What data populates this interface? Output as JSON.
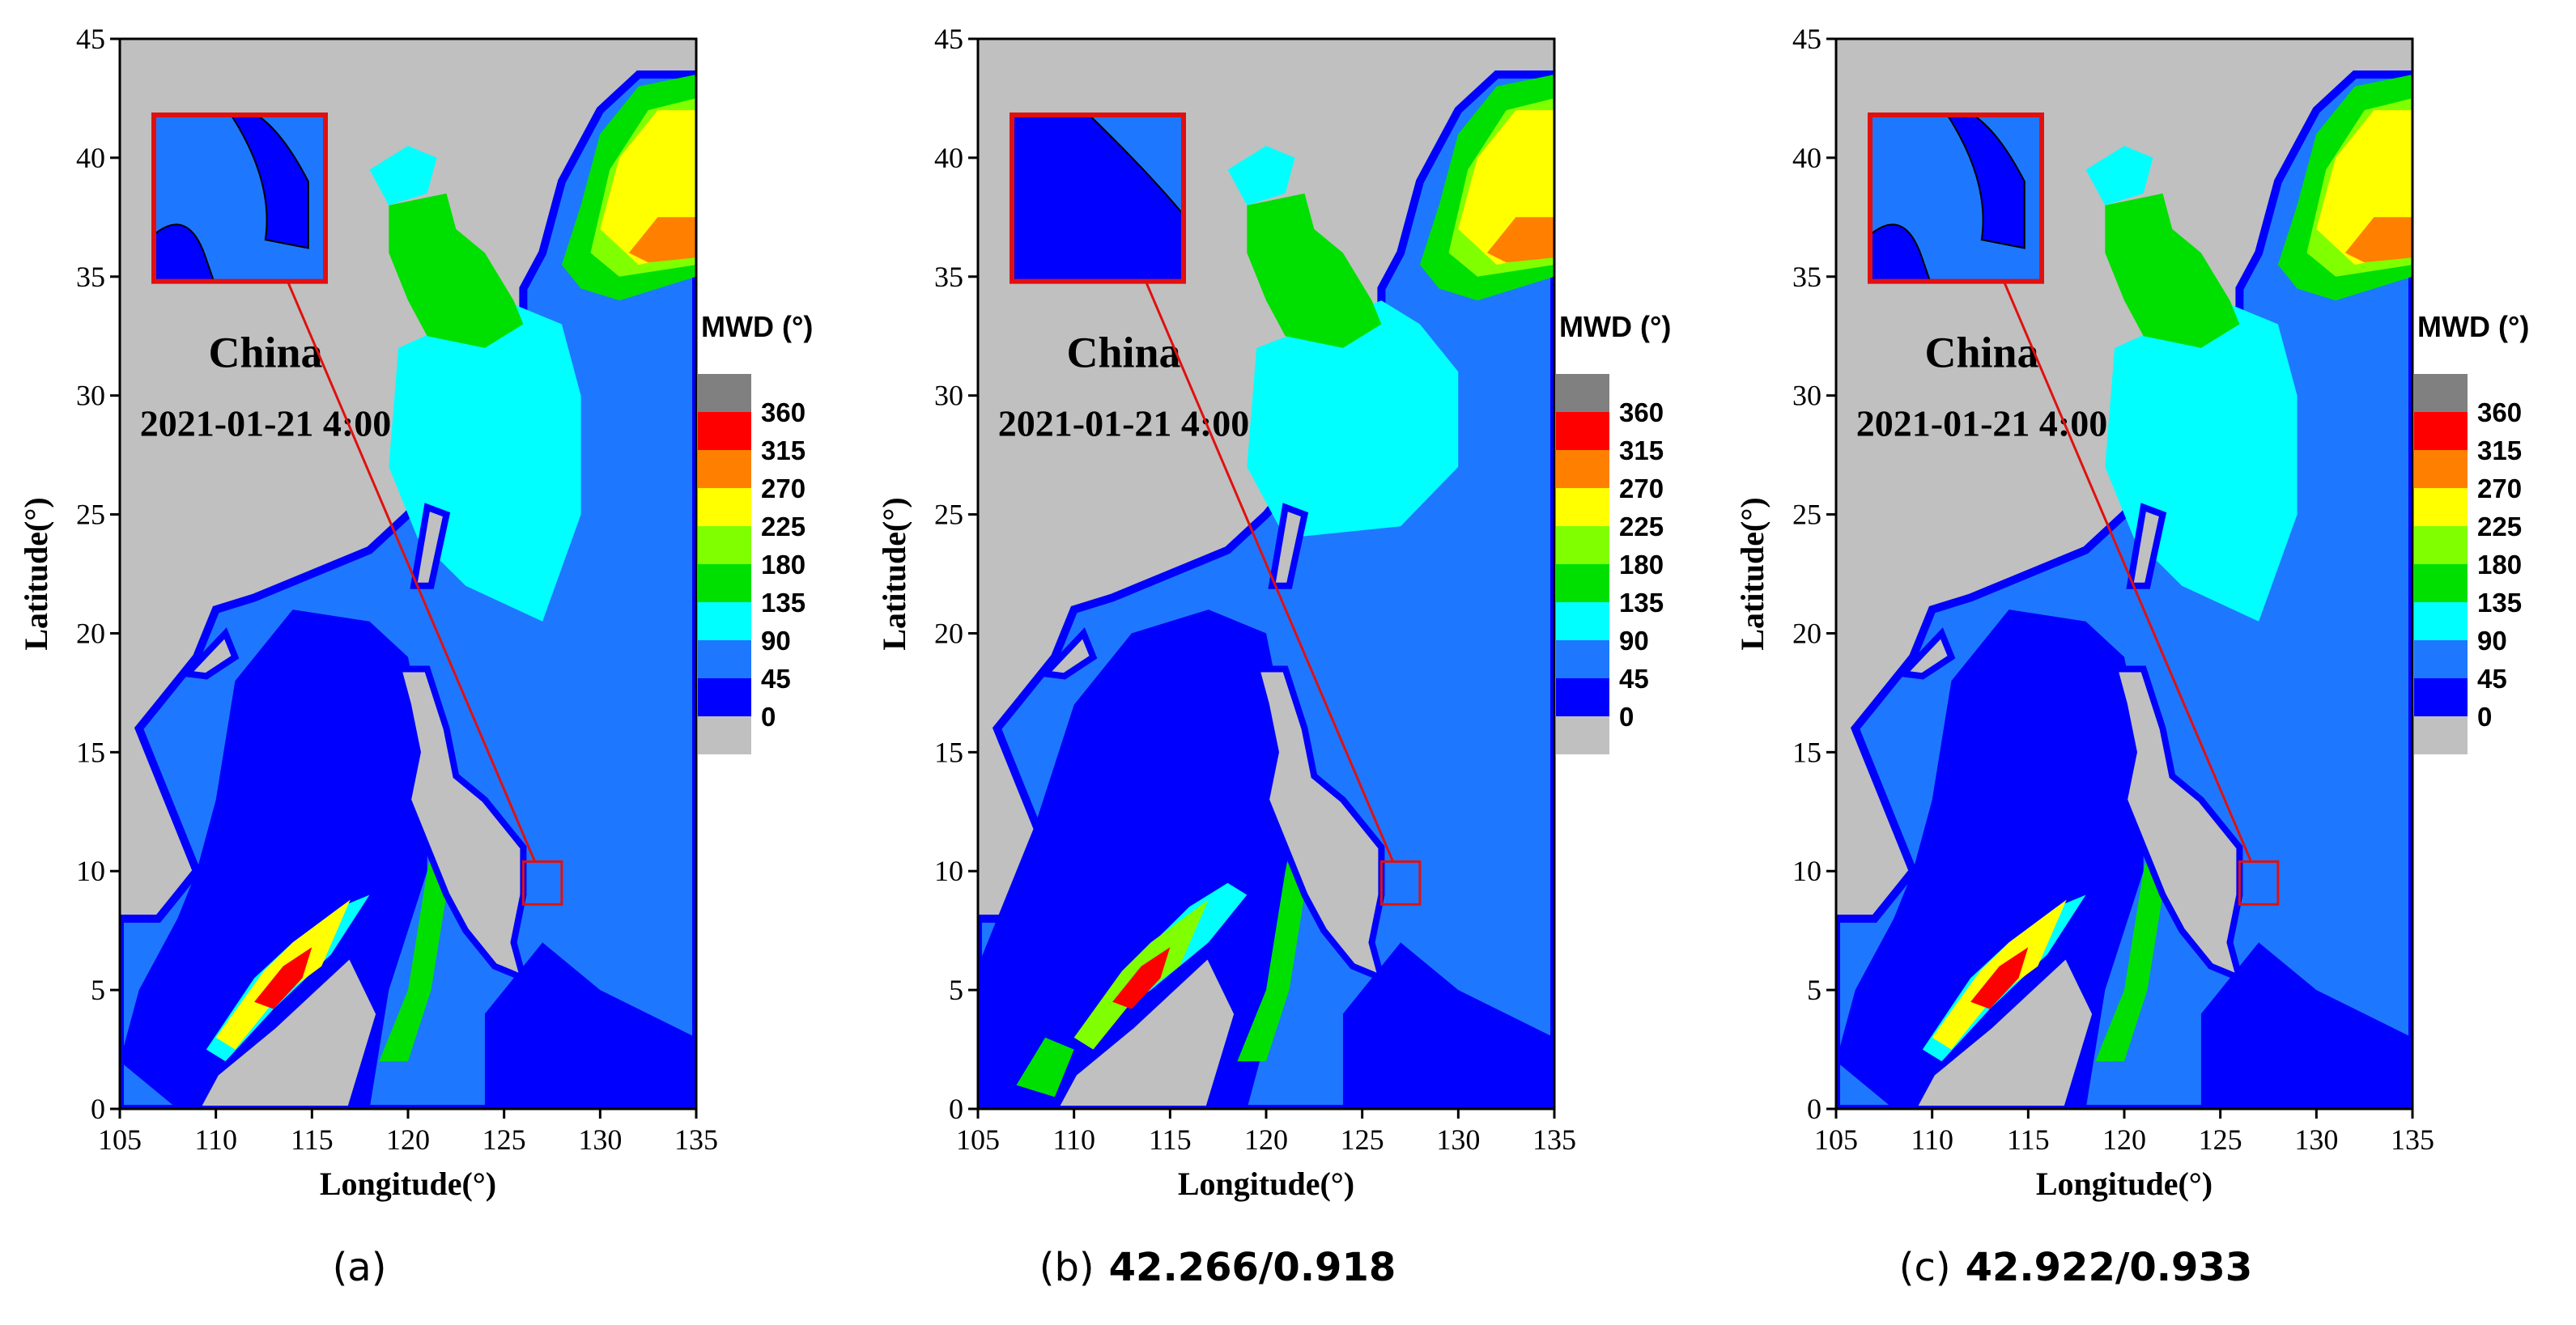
{
  "colors": {
    "land": "#c0c0c0",
    "band_0_45": "#0000ff",
    "band_45_90": "#1e78ff",
    "band_90_135": "#00ffff",
    "band_135_180": "#00e000",
    "band_180_225": "#80ff00",
    "band_225_270": "#ffff00",
    "band_270_315": "#ff8000",
    "band_315_360": "#ff0000",
    "band_360": "#808080",
    "zoom_frame": "#e01010"
  },
  "map": {
    "title": "China",
    "timestamp": "2021-01-21 4:00",
    "xlabel": "Longitude(°)",
    "ylabel": "Latitude(°)",
    "xlim": [
      105,
      135
    ],
    "ylim": [
      0,
      45
    ],
    "xticks": [
      "105",
      "110",
      "115",
      "120",
      "125",
      "130",
      "135"
    ],
    "yticks": [
      "0",
      "5",
      "10",
      "15",
      "20",
      "25",
      "30",
      "35",
      "40",
      "45"
    ],
    "zoom_region": {
      "lon": [
        126,
        128
      ],
      "lat": [
        8.6,
        10.4
      ]
    }
  },
  "legend": {
    "title": "MWD (°)",
    "labels": [
      "360",
      "315",
      "270",
      "225",
      "180",
      "135",
      "90",
      "45",
      "0"
    ]
  },
  "panels": [
    {
      "id": "a",
      "caption": "(a)",
      "score": ""
    },
    {
      "id": "b",
      "caption": "(b)",
      "score": "42.266/0.918"
    },
    {
      "id": "c",
      "caption": "(c)",
      "score": "42.922/0.933"
    }
  ]
}
